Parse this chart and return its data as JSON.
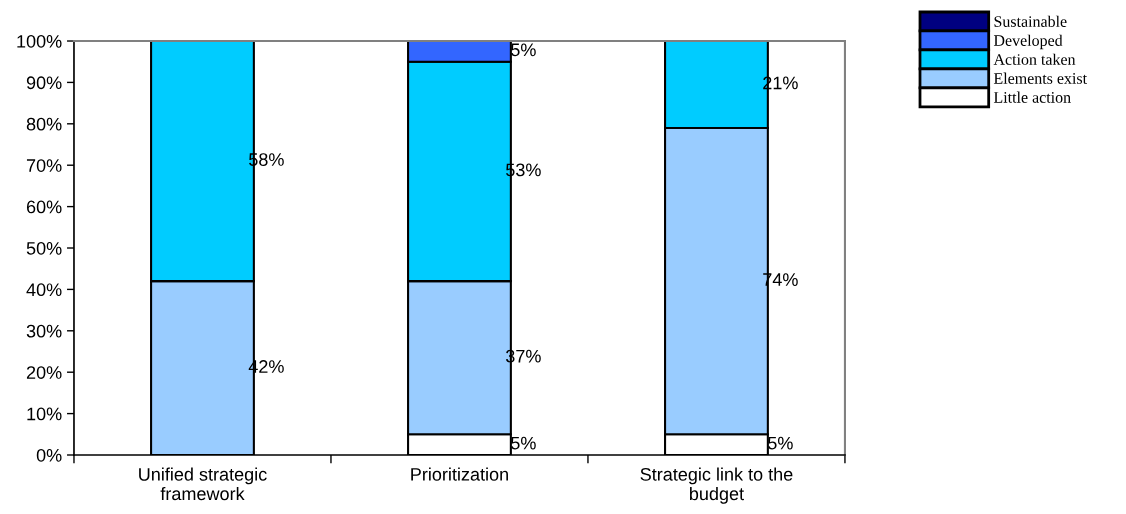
{
  "chart_data": {
    "type": "bar",
    "stacked": true,
    "categories": [
      "Unified strategic\nframework",
      "Prioritization",
      "Strategic link to the\nbudget"
    ],
    "series": [
      {
        "name": "Little action",
        "color": "#ffffff",
        "values": [
          null,
          5,
          5
        ],
        "value_labels": [
          null,
          "5%",
          "5%"
        ]
      },
      {
        "name": "Elements exist",
        "color": "#99ccff",
        "values": [
          42,
          37,
          74
        ],
        "value_labels": [
          "42%",
          "37%",
          "74%"
        ]
      },
      {
        "name": "Action taken",
        "color": "#00ccff",
        "values": [
          58,
          53,
          21
        ],
        "value_labels": [
          "58%",
          "53%",
          "21%"
        ]
      },
      {
        "name": "Developed",
        "color": "#3366ff",
        "values": [
          null,
          5,
          null
        ],
        "value_labels": [
          null,
          "5%",
          null
        ]
      },
      {
        "name": "Sustainable",
        "color": "#000080",
        "values": [
          null,
          null,
          null
        ]
      }
    ],
    "ylim": [
      0,
      100
    ],
    "yticks": [
      {
        "value": 0,
        "label": "0%"
      },
      {
        "value": 10,
        "label": "10%"
      },
      {
        "value": 20,
        "label": "20%"
      },
      {
        "value": 30,
        "label": "30%"
      },
      {
        "value": 40,
        "label": "40%"
      },
      {
        "value": 50,
        "label": "50%"
      },
      {
        "value": 60,
        "label": "60%"
      },
      {
        "value": 70,
        "label": "70%"
      },
      {
        "value": 80,
        "label": "80%"
      },
      {
        "value": 90,
        "label": "90%"
      },
      {
        "value": 100,
        "label": "100%"
      }
    ],
    "grid": false,
    "legend": "top right"
  }
}
